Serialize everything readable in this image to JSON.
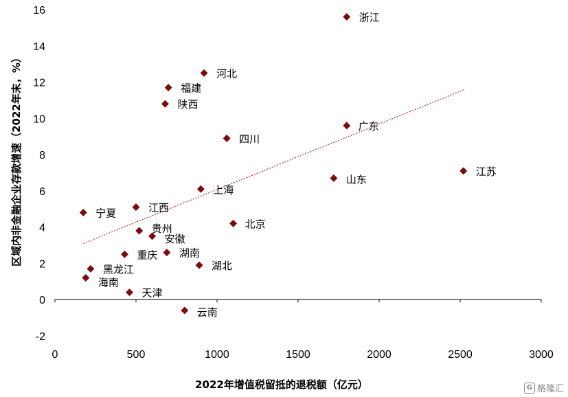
{
  "chart_data": {
    "type": "scatter",
    "title": "",
    "xlabel": "2022年增值税留抵的退税额（亿元）",
    "ylabel": "区域内非金融企业存款增速（2022年末，%）",
    "xlim": [
      0,
      3000
    ],
    "ylim": [
      -2,
      16
    ],
    "x_ticks": [
      0,
      500,
      1000,
      1500,
      2000,
      2500,
      3000
    ],
    "y_ticks": [
      -2,
      0,
      2,
      4,
      6,
      8,
      10,
      12,
      14,
      16
    ],
    "grid": false,
    "marker_color": "#7b0c0c",
    "trendline_color": "#b03a3a",
    "trendline": {
      "style": "dotted",
      "x": [
        175,
        2530
      ],
      "y": [
        3.1,
        11.6
      ]
    },
    "points": [
      {
        "label": "浙江",
        "x": 1800,
        "y": 15.6
      },
      {
        "label": "河北",
        "x": 920,
        "y": 12.5
      },
      {
        "label": "福建",
        "x": 700,
        "y": 11.7
      },
      {
        "label": "陕西",
        "x": 680,
        "y": 10.8
      },
      {
        "label": "四川",
        "x": 1060,
        "y": 8.9
      },
      {
        "label": "广东",
        "x": 1800,
        "y": 9.6
      },
      {
        "label": "江苏",
        "x": 2520,
        "y": 7.1
      },
      {
        "label": "山东",
        "x": 1720,
        "y": 6.7
      },
      {
        "label": "上海",
        "x": 900,
        "y": 6.1
      },
      {
        "label": "宁夏",
        "x": 175,
        "y": 4.8
      },
      {
        "label": "江西",
        "x": 500,
        "y": 5.1
      },
      {
        "label": "北京",
        "x": 1100,
        "y": 4.2
      },
      {
        "label": "贵州",
        "x": 520,
        "y": 3.8
      },
      {
        "label": "安徽",
        "x": 600,
        "y": 3.5
      },
      {
        "label": "重庆",
        "x": 430,
        "y": 2.5
      },
      {
        "label": "湖南",
        "x": 690,
        "y": 2.6
      },
      {
        "label": "湖北",
        "x": 890,
        "y": 1.9
      },
      {
        "label": "黑龙江",
        "x": 220,
        "y": 1.7
      },
      {
        "label": "海南",
        "x": 190,
        "y": 1.2
      },
      {
        "label": "天津",
        "x": 460,
        "y": 0.4
      },
      {
        "label": "云南",
        "x": 800,
        "y": -0.6
      }
    ]
  },
  "watermark": {
    "text": "格隆汇",
    "icon": "G"
  }
}
